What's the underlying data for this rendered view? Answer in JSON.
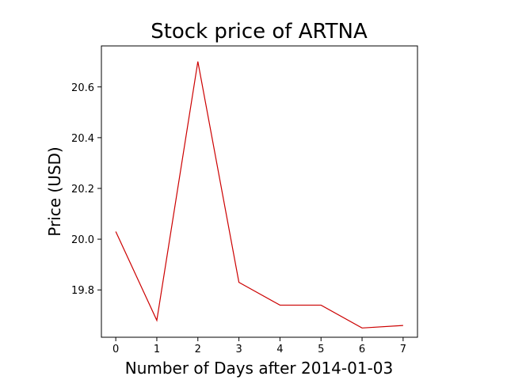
{
  "chart_data": {
    "type": "line",
    "title": "Stock price of ARTNA",
    "xlabel": "Number of Days after 2014-01-03",
    "ylabel": "Price (USD)",
    "x": [
      0,
      1,
      2,
      3,
      4,
      5,
      6,
      7
    ],
    "series": [
      {
        "values": [
          20.03,
          19.68,
          20.7,
          19.83,
          19.74,
          19.74,
          19.65,
          19.66
        ],
        "color": "#cc0000"
      }
    ],
    "xticks": [
      "0",
      "1",
      "2",
      "3",
      "4",
      "5",
      "6",
      "7"
    ],
    "yticks": [
      "19.8",
      "20.0",
      "20.2",
      "20.4",
      "20.6"
    ],
    "xlim": [
      -0.35,
      7.35
    ],
    "ylim": [
      19.6135,
      20.7615
    ],
    "grid": false
  }
}
